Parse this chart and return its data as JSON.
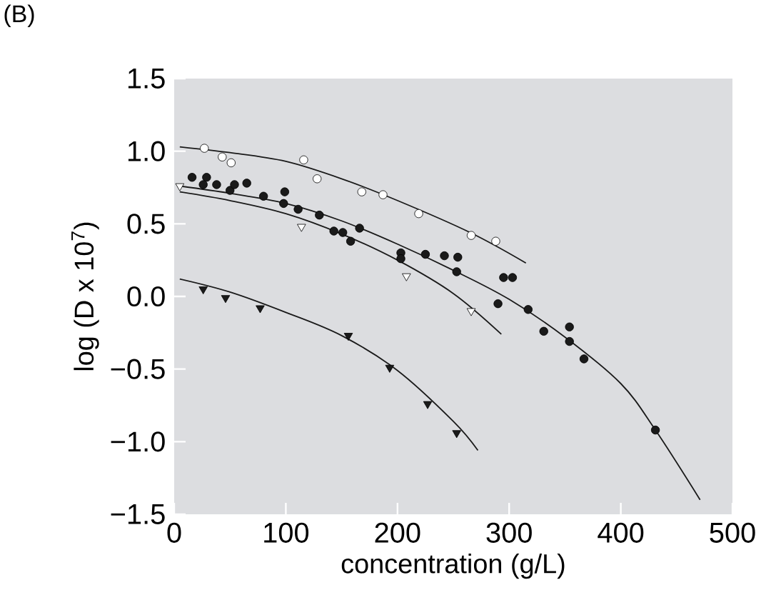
{
  "chart_data": {
    "type": "scatter",
    "title": "(B)",
    "xlabel": "concentration (g/L)",
    "ylabel": "log (D x 10$^{7}$)",
    "xlim": [
      0,
      500
    ],
    "ylim": [
      -1.5,
      1.5
    ],
    "xticks": [
      0,
      100,
      200,
      300,
      400,
      500
    ],
    "yticks": [
      {
        "value": -1.5,
        "label": "−1.5"
      },
      {
        "value": -1.0,
        "label": "−1.0"
      },
      {
        "value": -0.5,
        "label": "−0.5"
      },
      {
        "value": 0.0,
        "label": "0.0"
      },
      {
        "value": 0.5,
        "label": "0.5"
      },
      {
        "value": 1.0,
        "label": "1.0"
      },
      {
        "value": 1.5,
        "label": "1.5"
      }
    ],
    "grid": false,
    "series": [
      {
        "type": "line",
        "color": "#1a1a1a",
        "marker": "none",
        "x": [
          5,
          50,
          100,
          150,
          200,
          265,
          315
        ],
        "values": [
          1.03,
          0.99,
          0.93,
          0.81,
          0.66,
          0.44,
          0.23
        ]
      },
      {
        "type": "line",
        "color": "#1a1a1a",
        "marker": "none",
        "x": [
          5,
          50,
          100,
          150,
          200,
          250,
          300,
          350,
          400,
          431,
          471
        ],
        "values": [
          0.76,
          0.71,
          0.64,
          0.52,
          0.36,
          0.18,
          -0.02,
          -0.28,
          -0.6,
          -0.92,
          -1.4
        ]
      },
      {
        "type": "line",
        "color": "#1a1a1a",
        "marker": "none",
        "x": [
          5,
          50,
          100,
          150,
          200,
          250,
          293
        ],
        "values": [
          0.72,
          0.66,
          0.57,
          0.43,
          0.25,
          0.02,
          -0.26
        ]
      },
      {
        "type": "line",
        "color": "#1a1a1a",
        "marker": "none",
        "x": [
          5,
          50,
          100,
          150,
          200,
          250,
          272
        ],
        "values": [
          0.12,
          0.03,
          -0.11,
          -0.27,
          -0.51,
          -0.86,
          -1.06
        ]
      },
      {
        "color": "#ffffff",
        "marker": "circle",
        "x": [
          27,
          43,
          51,
          116,
          128,
          168,
          187,
          219,
          266,
          288
        ],
        "values": [
          1.02,
          0.96,
          0.92,
          0.94,
          0.81,
          0.72,
          0.7,
          0.57,
          0.42,
          0.38
        ]
      },
      {
        "color": "#ffffff",
        "marker": "triangle",
        "x": [
          5,
          114,
          208,
          266
        ],
        "values": [
          0.76,
          0.48,
          0.14,
          -0.1
        ]
      },
      {
        "color": "#1a1a1a",
        "marker": "circle",
        "x": [
          16,
          29,
          26,
          38,
          50,
          54,
          65,
          80,
          99,
          98,
          111,
          130,
          143,
          151,
          158,
          166,
          203,
          203,
          225,
          242,
          254,
          253,
          295,
          303,
          290,
          317,
          331,
          354,
          354,
          367,
          431
        ],
        "values": [
          0.82,
          0.82,
          0.77,
          0.77,
          0.73,
          0.77,
          0.78,
          0.69,
          0.72,
          0.64,
          0.6,
          0.56,
          0.45,
          0.44,
          0.38,
          0.47,
          0.3,
          0.26,
          0.29,
          0.28,
          0.27,
          0.17,
          0.13,
          0.13,
          -0.05,
          -0.09,
          -0.24,
          -0.21,
          -0.31,
          -0.43,
          -0.92
        ]
      },
      {
        "color": "#1a1a1a",
        "marker": "triangle",
        "x": [
          26,
          46,
          77,
          156,
          193,
          227,
          253
        ],
        "values": [
          0.05,
          -0.01,
          -0.08,
          -0.27,
          -0.49,
          -0.74,
          -0.94
        ]
      }
    ]
  }
}
